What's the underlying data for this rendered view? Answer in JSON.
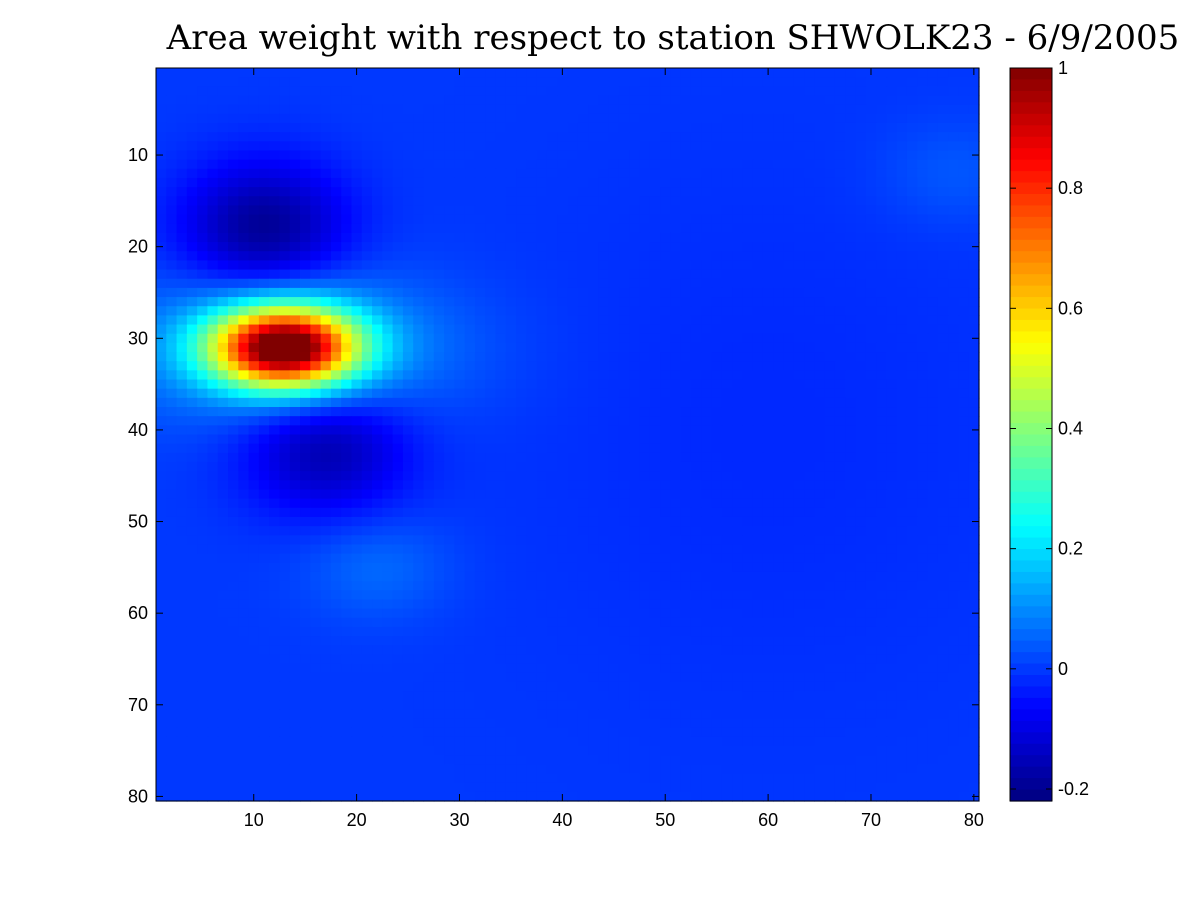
{
  "chart_data": {
    "type": "heatmap",
    "title": "Area weight with respect to station SHWOLK23 - 6/9/2005",
    "xlabel": "",
    "ylabel": "",
    "grid": false,
    "colormap": "jet",
    "xlim": [
      0.5,
      80.5
    ],
    "ylim": [
      0.5,
      80.5
    ],
    "y_direction": "reversed",
    "x_ticks": [
      10,
      20,
      30,
      40,
      50,
      60,
      70,
      80
    ],
    "y_ticks": [
      10,
      20,
      30,
      40,
      50,
      60,
      70,
      80
    ],
    "x_tick_labels": [
      "10",
      "20",
      "30",
      "40",
      "50",
      "60",
      "70",
      "80"
    ],
    "y_tick_labels": [
      "10",
      "20",
      "30",
      "40",
      "50",
      "60",
      "70",
      "80"
    ],
    "grid_size": [
      80,
      80
    ],
    "background_value": 0.0,
    "features": [
      {
        "kind": "peak",
        "x": 13,
        "y": 31,
        "value": 1.0
      },
      {
        "kind": "trough",
        "x": 11,
        "y": 18,
        "value": -0.2
      },
      {
        "kind": "trough",
        "x": 17,
        "y": 42,
        "value": -0.17
      },
      {
        "kind": "trough",
        "x": 60,
        "y": 40,
        "value": -0.02
      },
      {
        "kind": "bump",
        "x": 22,
        "y": 55,
        "value": 0.06
      },
      {
        "kind": "bump",
        "x": 78,
        "y": 12,
        "value": 0.04
      }
    ],
    "colorbar": {
      "limits": [
        -0.22,
        1.0
      ],
      "ticks": [
        -0.2,
        0,
        0.2,
        0.4,
        0.6,
        0.8,
        1
      ],
      "tick_labels": [
        "-0.2",
        "0",
        "0.2",
        "0.4",
        "0.6",
        "0.8",
        "1"
      ],
      "placement": "right"
    }
  }
}
